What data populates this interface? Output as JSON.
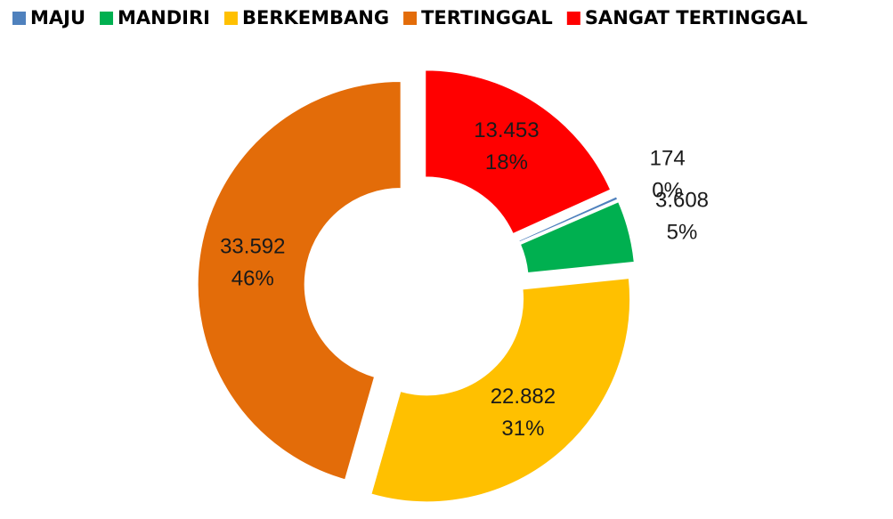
{
  "chart_data": {
    "type": "donut",
    "categories": [
      "MAJU",
      "MANDIRI",
      "BERKEMBANG",
      "TERTINGGAL",
      "SANGAT TERTINGGAL"
    ],
    "values": [
      174,
      3608,
      22882,
      33592,
      13453
    ],
    "value_labels": [
      "174",
      "3.608",
      "22.882",
      "33.592",
      "13.453"
    ],
    "percent_labels": [
      "0%",
      "5%",
      "31%",
      "46%",
      "18%"
    ],
    "colors": [
      "#4f81bd",
      "#00b050",
      "#ffc000",
      "#e36c09",
      "#ff0000"
    ],
    "legend": "top"
  }
}
